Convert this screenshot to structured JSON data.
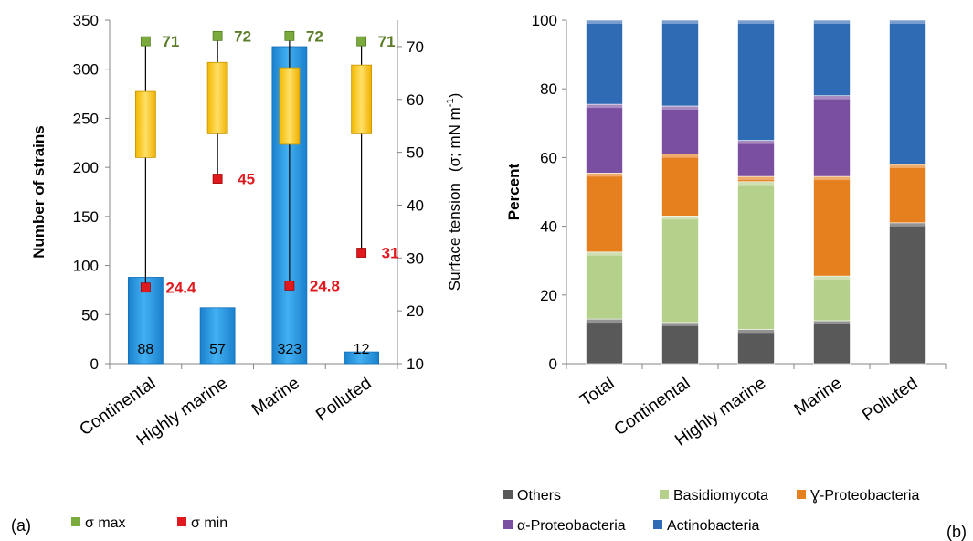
{
  "chart_data": [
    {
      "type": "bar",
      "panel_label": "(a)",
      "categories": [
        "Continental",
        "Highly marine",
        "Marine",
        "Polluted"
      ],
      "ylabel": "Number of strains",
      "ylim": [
        0,
        350
      ],
      "yticks": [
        0,
        50,
        100,
        150,
        200,
        250,
        300,
        350
      ],
      "y2label_main": "Surface tension",
      "y2label_sym": "(σ; mN m",
      "y2label_sup": "-1",
      "y2label_close": ")",
      "y2lim": [
        10,
        75
      ],
      "y2ticks": [
        10,
        20,
        30,
        40,
        50,
        60,
        70
      ],
      "series": [
        {
          "kind": "bar",
          "values": [
            88,
            57,
            323,
            12
          ],
          "labels": [
            "88",
            "57",
            "323",
            "12"
          ],
          "color": "#2e9fe6"
        },
        {
          "kind": "box",
          "low": [
            49,
            53.5,
            51.5,
            53.5
          ],
          "high": [
            61.5,
            67,
            66,
            66.5
          ],
          "color": "#f5c518"
        },
        {
          "kind": "marker",
          "name": "σ max",
          "values": [
            71,
            72,
            72,
            71
          ],
          "labels": [
            "71",
            "72",
            "72",
            "71"
          ],
          "color": "#6e9b3a",
          "label_color": "#5e7d2b"
        },
        {
          "kind": "marker",
          "name": "σ min",
          "values": [
            24.4,
            45,
            24.8,
            31
          ],
          "labels": [
            "24.4",
            "45",
            "24.8",
            "31"
          ],
          "color": "#e0191e",
          "label_color": "#e0191e"
        }
      ],
      "legend": [
        {
          "name": "σ max",
          "color": "#7aab3c"
        },
        {
          "name": "σ min",
          "color": "#e0191e"
        }
      ]
    },
    {
      "type": "bar",
      "stacked": true,
      "panel_label": "(b)",
      "categories": [
        "Total",
        "Continental",
        "Highly marine",
        "Marine",
        "Polluted"
      ],
      "ylabel": "Percent",
      "ylim": [
        0,
        100
      ],
      "yticks": [
        0,
        20,
        40,
        60,
        80,
        100
      ],
      "series": [
        {
          "name": "Others",
          "color": "#595959",
          "values": [
            13,
            12,
            10,
            12.5,
            41
          ]
        },
        {
          "name": "Basidiomycota",
          "color": "#b5d08a",
          "values": [
            19.5,
            31,
            43,
            13,
            0
          ]
        },
        {
          "name": "Ɣ-Proteobacteria",
          "color": "#e6801f",
          "values": [
            23,
            18,
            1.5,
            29,
            17
          ]
        },
        {
          "name": "α-Proteobacteria",
          "color": "#7a4ea0",
          "values": [
            20,
            14,
            10.5,
            23.5,
            0
          ]
        },
        {
          "name": "Actinobacteria",
          "color": "#2e6bb4",
          "values": [
            24.5,
            25,
            35,
            22,
            42
          ]
        }
      ],
      "legend_rows": [
        [
          "Others",
          "Basidiomycota",
          "Ɣ-Proteobacteria"
        ],
        [
          "α-Proteobacteria",
          "Actinobacteria"
        ]
      ]
    }
  ]
}
